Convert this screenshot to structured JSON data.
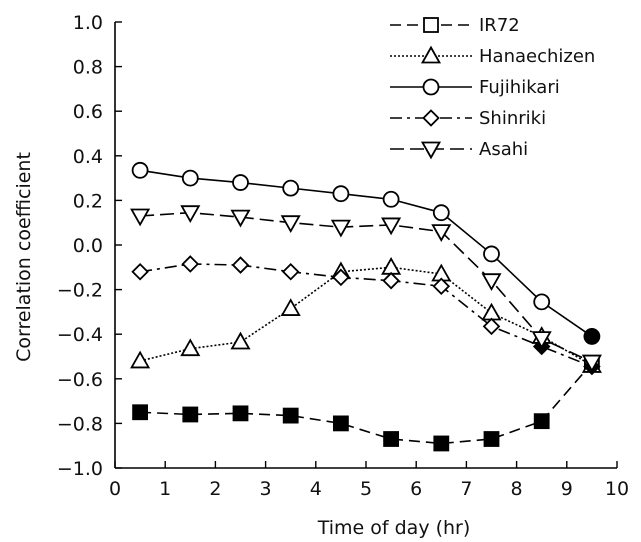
{
  "chart_data": {
    "type": "line",
    "xlabel": "Time of day (hr)",
    "ylabel": "Correlation coefficient",
    "xlim": [
      0,
      10
    ],
    "ylim": [
      -1.0,
      1.0
    ],
    "xticks": [
      0,
      1,
      2,
      3,
      4,
      5,
      6,
      7,
      8,
      9,
      10
    ],
    "yticks": [
      -1.0,
      -0.8,
      -0.6,
      -0.4,
      -0.2,
      0.0,
      0.2,
      0.4,
      0.6,
      0.8,
      1.0
    ],
    "xtick_labels": [
      "0",
      "1",
      "2",
      "3",
      "4",
      "5",
      "6",
      "7",
      "8",
      "9",
      "10"
    ],
    "ytick_labels": [
      "−1.0",
      "−0.8",
      "−0.6",
      "−0.4",
      "−0.2",
      "0.0",
      "0.2",
      "0.4",
      "0.6",
      "0.8",
      "1.0"
    ],
    "grid": false,
    "legend_position": "top-right",
    "x": [
      0.5,
      1.5,
      2.5,
      3.5,
      4.5,
      5.5,
      6.5,
      7.5,
      8.5,
      9.5
    ],
    "series": [
      {
        "name": "IR72",
        "marker": "square",
        "line_style": "dash",
        "values": [
          -0.75,
          -0.76,
          -0.755,
          -0.765,
          -0.8,
          -0.87,
          -0.89,
          -0.87,
          -0.79,
          -0.53
        ],
        "marker_fill": [
          "filled",
          "filled",
          "filled",
          "filled",
          "filled",
          "filled",
          "filled",
          "filled",
          "filled",
          "open"
        ]
      },
      {
        "name": "Hanaechizen",
        "marker": "triangle-up",
        "line_style": "dotted",
        "values": [
          -0.52,
          -0.465,
          -0.435,
          -0.285,
          -0.12,
          -0.1,
          -0.13,
          -0.305,
          -0.41,
          -0.54
        ],
        "marker_fill": [
          "open",
          "open",
          "open",
          "open",
          "open",
          "open",
          "open",
          "open",
          "open",
          "open"
        ]
      },
      {
        "name": "Fujihikari",
        "marker": "circle",
        "line_style": "solid",
        "values": [
          0.335,
          0.3,
          0.28,
          0.255,
          0.23,
          0.205,
          0.145,
          -0.04,
          -0.255,
          -0.41
        ],
        "marker_fill": [
          "open",
          "open",
          "open",
          "open",
          "open",
          "open",
          "open",
          "open",
          "open",
          "filled"
        ]
      },
      {
        "name": "Shinriki",
        "marker": "diamond",
        "line_style": "dashdot",
        "values": [
          -0.12,
          -0.085,
          -0.09,
          -0.12,
          -0.145,
          -0.16,
          -0.185,
          -0.365,
          -0.455,
          -0.545
        ],
        "marker_fill": [
          "open",
          "open",
          "open",
          "open",
          "open",
          "open",
          "open",
          "open",
          "filled",
          "filled"
        ]
      },
      {
        "name": "Asahi",
        "marker": "triangle-down",
        "line_style": "longdash",
        "values": [
          0.13,
          0.145,
          0.125,
          0.1,
          0.08,
          0.09,
          0.06,
          -0.16,
          -0.42,
          -0.525
        ],
        "marker_fill": [
          "open",
          "open",
          "open",
          "open",
          "open",
          "open",
          "open",
          "open",
          "open",
          "open"
        ]
      }
    ],
    "colors": {
      "line": "#000000",
      "open_fill": "#ffffff",
      "filled_fill": "#000000"
    }
  }
}
